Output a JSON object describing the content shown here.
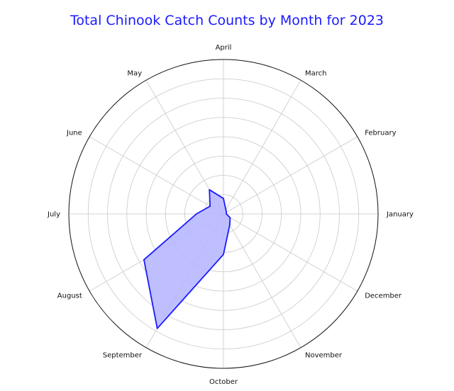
{
  "chart_data": {
    "type": "radar",
    "title": "Total Chinook Catch Counts by Month for 2023",
    "categories": [
      "January",
      "February",
      "March",
      "April",
      "May",
      "June",
      "July",
      "August",
      "September",
      "October",
      "November",
      "December"
    ],
    "series": [
      {
        "values": [
          0.3,
          0.35,
          0.5,
          1.6,
          2.9,
          1.6,
          2.8,
          9.5,
          13.7,
          4.2,
          1.3,
          0.8
        ],
        "color": "#1a1aff",
        "fill": "#b8b8ff"
      }
    ],
    "rlim": [
      0,
      16
    ],
    "radial_gridlines": 8,
    "grid": true,
    "direction": "counterclockwise",
    "start_angle": "east"
  }
}
